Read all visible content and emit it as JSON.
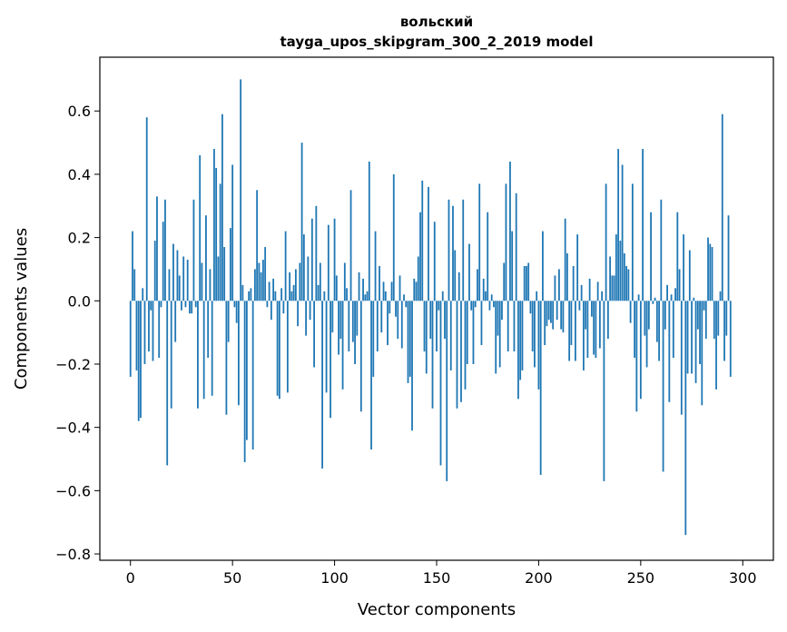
{
  "chart_data": {
    "type": "bar",
    "title": "вольский",
    "subtitle": "tayga_upos_skipgram_300_2_2019 model",
    "xlabel": "Vector components",
    "ylabel": "Components values",
    "xlim": [
      -15,
      315
    ],
    "ylim": [
      -0.82,
      0.77
    ],
    "xticks": [
      0,
      50,
      100,
      150,
      200,
      250,
      300
    ],
    "yticks": [
      -0.8,
      -0.6,
      -0.4,
      -0.2,
      0.0,
      0.2,
      0.4,
      0.6
    ],
    "ytick_labels": [
      "−0.8",
      "−0.6",
      "−0.4",
      "−0.2",
      "0.0",
      "0.2",
      "0.4",
      "0.6"
    ],
    "grid": false,
    "bar_color": "#1f77b4",
    "values": [
      -0.24,
      0.22,
      0.1,
      -0.22,
      -0.38,
      -0.37,
      0.04,
      -0.2,
      0.58,
      -0.16,
      -0.03,
      -0.19,
      0.19,
      0.33,
      -0.18,
      -0.02,
      0.25,
      0.32,
      -0.52,
      0.1,
      -0.34,
      0.18,
      -0.13,
      0.16,
      0.08,
      -0.03,
      0.14,
      -0.02,
      0.13,
      -0.04,
      -0.04,
      0.32,
      -0.02,
      -0.34,
      0.46,
      0.12,
      -0.31,
      0.27,
      -0.18,
      0.1,
      -0.3,
      0.48,
      0.42,
      0.14,
      0.37,
      0.59,
      0.17,
      -0.36,
      -0.13,
      0.23,
      0.43,
      -0.02,
      -0.07,
      -0.33,
      0.7,
      0.05,
      -0.51,
      -0.44,
      0.03,
      0.04,
      -0.47,
      0.1,
      0.35,
      0.12,
      0.09,
      0.13,
      0.17,
      -0.02,
      0.06,
      -0.06,
      0.07,
      0.03,
      -0.3,
      -0.31,
      0.04,
      -0.04,
      0.22,
      -0.29,
      0.09,
      0.03,
      0.05,
      0.1,
      -0.08,
      0.12,
      0.5,
      0.21,
      -0.11,
      0.14,
      -0.06,
      0.26,
      -0.21,
      0.3,
      0.05,
      0.12,
      -0.53,
      0.03,
      -0.29,
      0.24,
      -0.37,
      -0.1,
      0.26,
      0.08,
      -0.17,
      -0.12,
      -0.28,
      0.12,
      0.04,
      -0.16,
      0.35,
      -0.13,
      -0.2,
      -0.11,
      0.09,
      -0.35,
      0.07,
      0.02,
      0.03,
      0.44,
      -0.47,
      -0.24,
      0.22,
      -0.16,
      0.11,
      -0.1,
      0.06,
      0.03,
      -0.14,
      -0.04,
      0.06,
      0.4,
      -0.05,
      -0.12,
      0.08,
      -0.15,
      0.02,
      -0.02,
      -0.26,
      -0.24,
      -0.41,
      0.07,
      0.06,
      0.14,
      0.28,
      0.38,
      -0.16,
      -0.23,
      0.36,
      -0.12,
      -0.34,
      0.25,
      -0.16,
      -0.03,
      -0.52,
      0.03,
      -0.12,
      -0.57,
      0.32,
      -0.22,
      0.3,
      0.16,
      -0.34,
      0.09,
      -0.32,
      0.32,
      -0.28,
      -0.2,
      0.18,
      -0.03,
      -0.2,
      -0.02,
      0.1,
      0.37,
      -0.14,
      0.07,
      0.03,
      0.28,
      -0.03,
      0.02,
      -0.02,
      -0.23,
      -0.11,
      -0.21,
      -0.06,
      0.12,
      0.37,
      -0.16,
      0.44,
      0.22,
      -0.16,
      0.34,
      -0.31,
      -0.25,
      -0.22,
      0.11,
      0.11,
      0.12,
      -0.04,
      -0.16,
      -0.21,
      0.03,
      -0.28,
      -0.55,
      0.22,
      -0.14,
      -0.08,
      -0.06,
      -0.07,
      -0.09,
      0.08,
      -0.06,
      0.1,
      -0.09,
      -0.1,
      0.26,
      0.15,
      -0.19,
      -0.14,
      0.11,
      -0.19,
      0.21,
      -0.03,
      0.05,
      -0.22,
      -0.09,
      -0.18,
      0.07,
      -0.05,
      -0.17,
      -0.18,
      0.06,
      -0.15,
      0.03,
      -0.57,
      0.37,
      -0.12,
      0.14,
      0.08,
      0.08,
      0.21,
      0.48,
      0.19,
      0.43,
      0.15,
      0.11,
      0.1,
      -0.07,
      0.37,
      -0.18,
      -0.35,
      0.02,
      -0.31,
      0.48,
      -0.11,
      -0.21,
      -0.09,
      0.28,
      -0.01,
      0.01,
      -0.13,
      -0.19,
      0.32,
      -0.54,
      -0.09,
      0.05,
      -0.32,
      0.02,
      -0.18,
      0.04,
      0.28,
      0.1,
      -0.36,
      0.21,
      -0.74,
      -0.23,
      0.16,
      -0.23,
      0.01,
      -0.26,
      -0.09,
      -0.2,
      -0.33,
      -0.03,
      -0.12,
      0.2,
      0.18,
      0.17,
      -0.12,
      -0.28,
      -0.11,
      0.03,
      0.59,
      -0.19,
      -0.11,
      0.27,
      -0.24
    ]
  }
}
